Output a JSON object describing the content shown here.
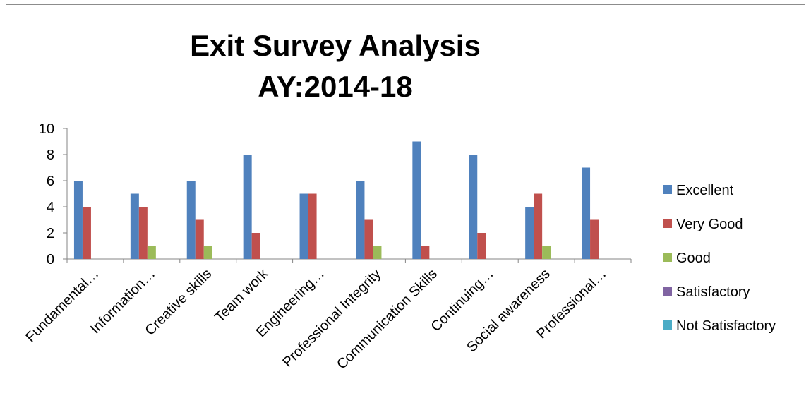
{
  "chart_data": {
    "type": "bar",
    "title": [
      "Exit Survey Analysis",
      "AY:2014-18"
    ],
    "xlabel": "",
    "ylabel": "",
    "ylim": [
      0,
      10
    ],
    "yticks": [
      0,
      2,
      4,
      6,
      8,
      10
    ],
    "grid": false,
    "legend_position": "right",
    "categories": [
      "Fundamental…",
      "Information…",
      "Creative skills",
      "Team work",
      "Engineering…",
      "Professional Integrity",
      "Communication Skills",
      "Continuing…",
      "Social awareness",
      "Professional…"
    ],
    "series": [
      {
        "name": "Excellent",
        "color": "#4f81bd",
        "values": [
          6,
          5,
          6,
          8,
          5,
          6,
          9,
          8,
          4,
          7
        ]
      },
      {
        "name": "Very Good",
        "color": "#c0504d",
        "values": [
          4,
          4,
          3,
          2,
          5,
          3,
          1,
          2,
          5,
          3
        ]
      },
      {
        "name": "Good",
        "color": "#9bbb59",
        "values": [
          0,
          1,
          1,
          0,
          0,
          1,
          0,
          0,
          1,
          0
        ]
      },
      {
        "name": "Satisfactory",
        "color": "#8064a2",
        "values": [
          0,
          0,
          0,
          0,
          0,
          0,
          0,
          0,
          0,
          0
        ]
      },
      {
        "name": "Not Satisfactory",
        "color": "#4bacc6",
        "values": [
          0,
          0,
          0,
          0,
          0,
          0,
          0,
          0,
          0,
          0
        ]
      }
    ]
  }
}
